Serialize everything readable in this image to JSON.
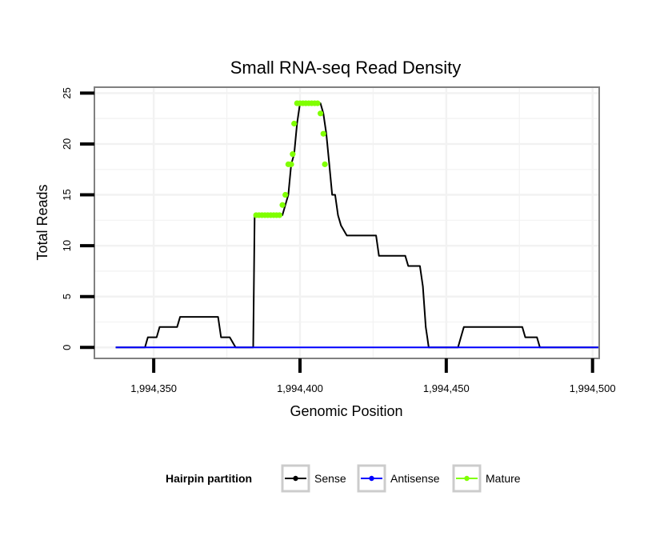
{
  "chart_data": {
    "type": "line",
    "title": "Small RNA-seq Read Density",
    "xlabel": "Genomic Position",
    "ylabel": "Total Reads",
    "xlim": [
      1994330,
      1994502
    ],
    "ylim": [
      -1,
      25.5
    ],
    "xticks": [
      1994350,
      1994400,
      1994450,
      1994500
    ],
    "xtick_labels": [
      "1,994,350",
      "1,994,400",
      "1,994,450",
      "1,994,500"
    ],
    "yticks": [
      0,
      5,
      10,
      15,
      20,
      25
    ],
    "ytick_labels": [
      "0",
      "5",
      "10",
      "15",
      "20",
      "25"
    ],
    "grid": true,
    "series": [
      {
        "name": "Sense",
        "color": "#000000",
        "x": [
          1994337,
          1994347,
          1994348,
          1994351,
          1994352,
          1994358,
          1994359,
          1994372,
          1994373,
          1994376,
          1994378,
          1994384,
          1994384.5,
          1994386,
          1994394,
          1994395,
          1994396,
          1994397,
          1994398,
          1994399,
          1994400,
          1994401,
          1994407,
          1994408,
          1994409,
          1994410,
          1994411,
          1994412,
          1994413,
          1994414,
          1994416,
          1994417,
          1994426,
          1994427,
          1994436,
          1994437,
          1994441,
          1994442,
          1994443,
          1994443.5,
          1994444,
          1994454,
          1994455,
          1994456,
          1994457,
          1994476,
          1994477,
          1994481,
          1994482,
          1994484,
          1994502
        ],
        "values": [
          0,
          0,
          1,
          1,
          2,
          2,
          3,
          3,
          1,
          1,
          0,
          0,
          13,
          13,
          13,
          14,
          15,
          18,
          19,
          22,
          24,
          24,
          24,
          23,
          21,
          18,
          15,
          15,
          13,
          12,
          11,
          11,
          11,
          9,
          9,
          8,
          8,
          6,
          2,
          1,
          0,
          0,
          1,
          2,
          2,
          2,
          1,
          1,
          0,
          0,
          0
        ]
      },
      {
        "name": "Antisense",
        "color": "#0000ff",
        "x": [
          1994337,
          1994502
        ],
        "values": [
          0,
          0
        ]
      },
      {
        "name": "Mature",
        "color": "#80ff00",
        "x": [
          1994385,
          1994386,
          1994387,
          1994388,
          1994389,
          1994390,
          1994391,
          1994392,
          1994393,
          1994394,
          1994395,
          1994396,
          1994397,
          1994397.5,
          1994398,
          1994399,
          1994400,
          1994401,
          1994402,
          1994403,
          1994404,
          1994405,
          1994406,
          1994407,
          1994408,
          1994408.5
        ],
        "values": [
          13,
          13,
          13,
          13,
          13,
          13,
          13,
          13,
          13,
          14,
          15,
          18,
          18,
          19,
          22,
          24,
          24,
          24,
          24,
          24,
          24,
          24,
          24,
          23,
          21,
          18
        ]
      }
    ],
    "legend": {
      "title": "Hairpin partition",
      "position": "bottom",
      "entries": [
        "Sense",
        "Antisense",
        "Mature"
      ]
    }
  },
  "colors": {
    "panel_border": "#808080",
    "grid": "#f2f2f2",
    "legend_key_border": "#cccccc"
  }
}
